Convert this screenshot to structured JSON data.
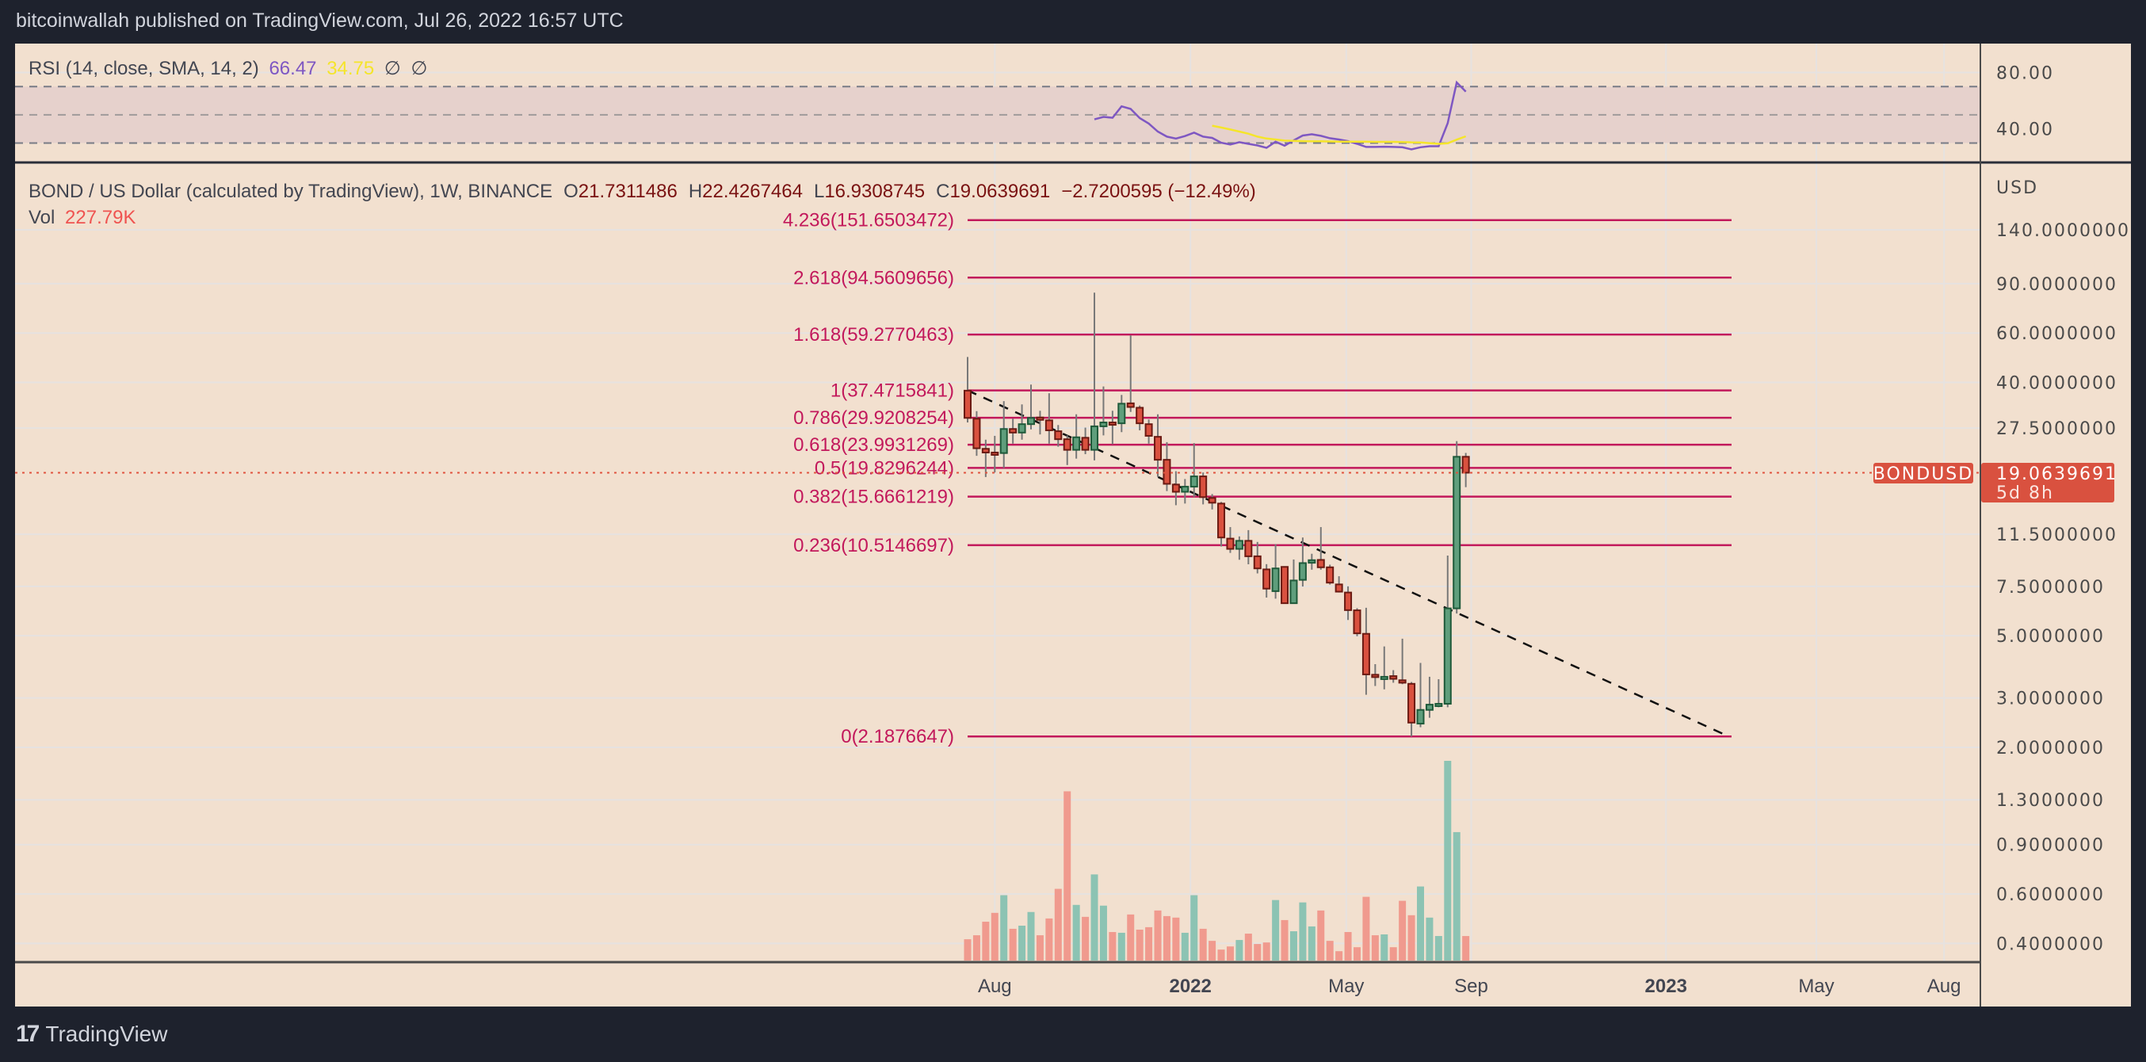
{
  "header": {
    "published": "bitcoinwallah published on TradingView.com, Jul 26, 2022 16:57 UTC"
  },
  "rsi_legend": {
    "title": "RSI (14, close, SMA, 14, 2)",
    "rsi_value": "66.47",
    "sma_value": "34.75",
    "extra1": "∅",
    "extra2": "∅"
  },
  "main_legend": {
    "symbol": "BOND / US Dollar (calculated by TradingView), 1W, BINANCE",
    "o_label": "O",
    "o": "21.7311486",
    "h_label": "H",
    "h": "22.4267464",
    "l_label": "L",
    "l": "16.9308745",
    "c_label": "C",
    "c": "19.0639691",
    "change": "−2.7200595 (−12.49%)",
    "vol_label": "Vol",
    "vol": "227.79K"
  },
  "price_axis": {
    "unit": "USD",
    "ticks": [
      "140.0000000",
      "90.0000000",
      "60.0000000",
      "40.0000000",
      "27.5000000",
      "11.5000000",
      "7.5000000",
      "5.0000000",
      "3.0000000",
      "2.0000000",
      "1.3000000",
      "0.9000000",
      "0.6000000",
      "0.4000000"
    ]
  },
  "rsi_axis": {
    "ticks": [
      "80.00",
      "40.00"
    ]
  },
  "time_axis": {
    "ticks": [
      "Aug",
      "2022",
      "May",
      "Sep",
      "2023",
      "May",
      "Aug"
    ]
  },
  "last_price": {
    "symbol_tag": "BONDUSD",
    "price": "19.0639691",
    "countdown": "5d 8h"
  },
  "footer": {
    "logo_mark": "17",
    "brand": "TradingView"
  },
  "colors": {
    "up": "#5f9e7c",
    "down": "#d9513f",
    "fib": "#c2185b",
    "rsi": "#7e57c2",
    "rsi_sma": "#f5e52a",
    "background": "#f2e0cf",
    "frame": "#1e222d"
  },
  "chart_data": [
    {
      "type": "candlestick",
      "x_start": "2021-07-12",
      "interval": "1W",
      "scale": "log",
      "ohlc": [
        [
          37.4,
          49.3,
          28.8,
          29.9
        ],
        [
          29.7,
          31.6,
          21.9,
          23.3
        ],
        [
          23.2,
          25.0,
          18.4,
          22.5
        ],
        [
          22.5,
          25.8,
          19.1,
          22.4
        ],
        [
          22.4,
          34.3,
          19.8,
          27.3
        ],
        [
          27.3,
          29.7,
          24.2,
          26.5
        ],
        [
          26.5,
          33.4,
          25.0,
          28.4
        ],
        [
          28.4,
          39.3,
          27.2,
          29.9
        ],
        [
          30.0,
          31.7,
          26.1,
          29.5
        ],
        [
          29.3,
          36.6,
          24.2,
          27.0
        ],
        [
          26.8,
          28.2,
          23.6,
          25.1
        ],
        [
          25.1,
          25.9,
          20.3,
          23.0
        ],
        [
          23.0,
          30.8,
          21.4,
          25.5
        ],
        [
          25.4,
          27.6,
          22.2,
          23.0
        ],
        [
          23.0,
          83.6,
          21.1,
          27.9
        ],
        [
          27.9,
          38.7,
          25.9,
          28.8
        ],
        [
          28.8,
          31.7,
          24.1,
          28.6
        ],
        [
          28.6,
          36.1,
          26.6,
          33.6
        ],
        [
          33.7,
          58.9,
          31.4,
          32.7
        ],
        [
          32.5,
          33.1,
          27.0,
          28.6
        ],
        [
          28.4,
          29.5,
          24.2,
          25.8
        ],
        [
          25.6,
          30.8,
          18.4,
          21.2
        ],
        [
          21.2,
          24.5,
          16.4,
          17.4
        ],
        [
          17.3,
          19.3,
          14.6,
          16.3
        ],
        [
          16.3,
          18.1,
          14.8,
          17.0
        ],
        [
          17.0,
          24.3,
          15.6,
          18.5
        ],
        [
          18.5,
          19.1,
          14.7,
          15.6
        ],
        [
          15.5,
          16.0,
          14.1,
          14.9
        ],
        [
          14.8,
          15.0,
          10.4,
          11.2
        ],
        [
          11.1,
          12.2,
          9.87,
          10.2
        ],
        [
          10.2,
          11.3,
          9.33,
          10.9
        ],
        [
          10.9,
          11.9,
          8.99,
          9.6
        ],
        [
          9.6,
          10.8,
          8.34,
          8.69
        ],
        [
          8.62,
          9.0,
          6.84,
          7.36
        ],
        [
          7.21,
          10.6,
          6.78,
          8.69
        ],
        [
          8.8,
          8.8,
          6.53,
          6.53
        ],
        [
          6.53,
          9.35,
          6.53,
          7.87
        ],
        [
          7.91,
          11.2,
          7.49,
          9.08
        ],
        [
          9.1,
          9.8,
          8.6,
          9.3
        ],
        [
          9.32,
          12.2,
          8.6,
          8.77
        ],
        [
          8.77,
          8.96,
          7.61,
          7.73
        ],
        [
          7.62,
          8.15,
          7.13,
          7.18
        ],
        [
          7.13,
          7.5,
          5.69,
          6.17
        ],
        [
          6.16,
          6.27,
          4.98,
          5.1
        ],
        [
          5.08,
          6.29,
          3.08,
          3.64
        ],
        [
          3.63,
          3.96,
          3.31,
          3.56
        ],
        [
          3.56,
          4.58,
          3.22,
          3.57
        ],
        [
          3.59,
          3.77,
          3.4,
          3.51
        ],
        [
          3.47,
          4.88,
          3.36,
          3.4
        ],
        [
          3.37,
          3.42,
          2.1877,
          2.45
        ],
        [
          2.43,
          4.0,
          2.36,
          2.72
        ],
        [
          2.72,
          3.57,
          2.55,
          2.84
        ],
        [
          2.85,
          3.5,
          2.78,
          2.86
        ],
        [
          2.86,
          9.66,
          2.78,
          6.26
        ],
        [
          6.26,
          24.7,
          6.0,
          21.73
        ],
        [
          21.7311486,
          22.4267464,
          16.9308745,
          19.0639691
        ]
      ],
      "volume_k": [
        198,
        235,
        361,
        443,
        607,
        295,
        324,
        451,
        235,
        391,
        666,
        1572,
        517,
        406,
        800,
        510,
        265,
        258,
        428,
        287,
        310,
        465,
        413,
        399,
        258,
        607,
        295,
        183,
        102,
        131,
        191,
        250,
        154,
        168,
        562,
        376,
        272,
        540,
        317,
        465,
        183,
        87,
        265,
        124,
        592,
        235,
        243,
        124,
        555,
        421,
        688,
        399,
        228,
        1855,
        1193,
        227.79
      ],
      "fib_levels": [
        {
          "ratio": "4.236",
          "price": 151.6503472,
          "label": "4.236(151.6503472)"
        },
        {
          "ratio": "2.618",
          "price": 94.5609656,
          "label": "2.618(94.5609656)"
        },
        {
          "ratio": "1.618",
          "price": 59.2770463,
          "label": "1.618(59.2770463)"
        },
        {
          "ratio": "1",
          "price": 37.4715841,
          "label": "1(37.4715841)"
        },
        {
          "ratio": "0.786",
          "price": 29.9208254,
          "label": "0.786(29.9208254)"
        },
        {
          "ratio": "0.618",
          "price": 23.9931269,
          "label": "0.618(23.9931269)"
        },
        {
          "ratio": "0.5",
          "price": 19.8296244,
          "label": "0.5(19.8296244)"
        },
        {
          "ratio": "0.382",
          "price": 15.6661219,
          "label": "0.382(15.6661219)"
        },
        {
          "ratio": "0.236",
          "price": 10.5146697,
          "label": "0.236(10.5146697)"
        },
        {
          "ratio": "0",
          "price": 2.1876647,
          "label": "0(2.1876647)"
        }
      ],
      "trendline": {
        "start": {
          "date": "2021-07-12",
          "price": 37.47
        },
        "end": {
          "date": "2023-02-20",
          "price": 2.19
        },
        "style": "dashed"
      }
    },
    {
      "type": "line",
      "title": "RSI (14, close, SMA, 14, 2)",
      "ylim": [
        20,
        90
      ],
      "bands": [
        30,
        50,
        70
      ],
      "rsi": [
        46.8,
        48.5,
        47.9,
        56.0,
        54.2,
        47.7,
        43.8,
        38.1,
        34.5,
        33.2,
        34.9,
        37.4,
        34.5,
        33.6,
        30.2,
        28.9,
        30.6,
        29.4,
        28.3,
        26.6,
        30.9,
        28.1,
        31.9,
        35.3,
        36.2,
        35.1,
        33.4,
        32.5,
        31.3,
        29.4,
        27.2,
        27.2,
        27.4,
        27.2,
        27.0,
        25.5,
        27.0,
        27.7,
        27.7,
        44.0,
        73.0,
        66.47
      ],
      "sma": [
        42.3,
        41.0,
        39.6,
        38.1,
        36.6,
        34.5,
        33.2,
        32.5,
        31.7,
        31.5,
        31.3,
        31.2,
        31.2,
        31.1,
        31.0,
        31.0,
        30.9,
        30.9,
        30.8,
        30.8,
        30.8,
        30.7,
        30.5,
        30.4,
        29.9,
        29.4,
        29.8,
        32.4,
        34.75
      ]
    }
  ]
}
